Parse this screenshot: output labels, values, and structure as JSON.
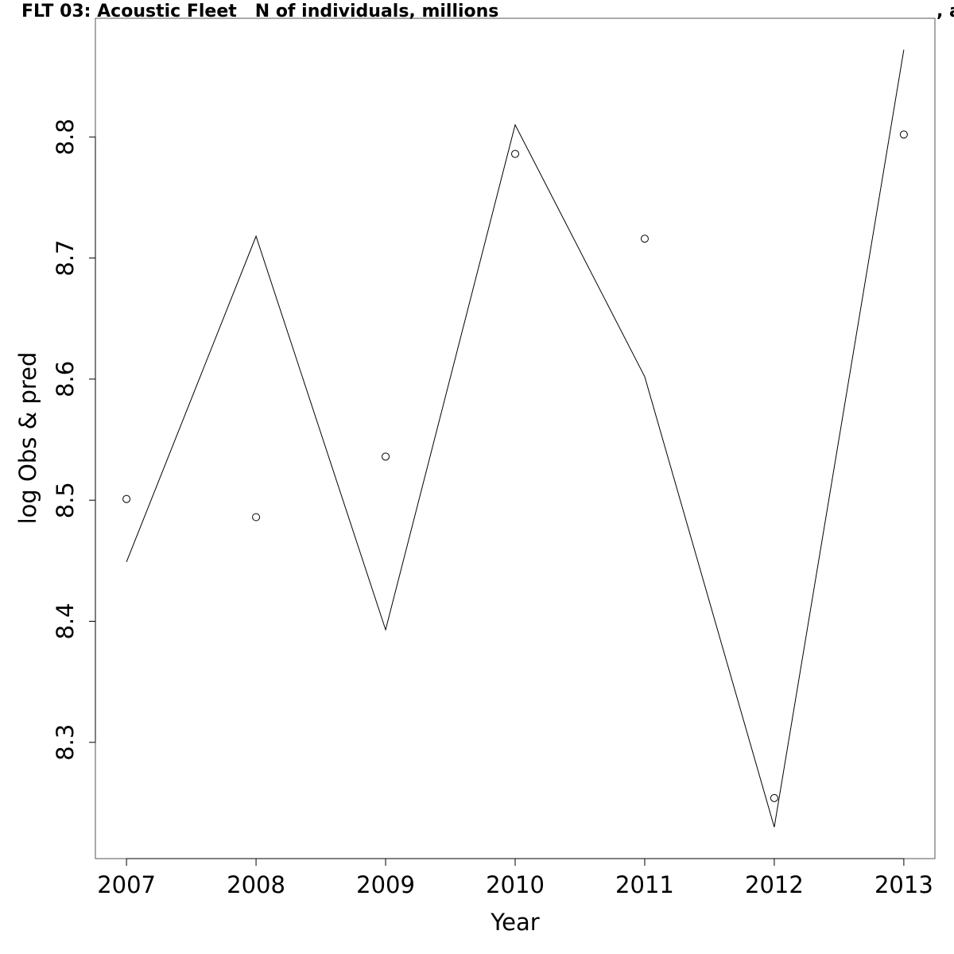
{
  "chart_data": {
    "type": "line",
    "title": "FLT 03: Acoustic Fleet   N of individuals, millions",
    "title_tail": ", a",
    "x_label": "Year",
    "y_label": "log Obs & pred",
    "x": [
      2007,
      2008,
      2009,
      2010,
      2011,
      2012,
      2013
    ],
    "series": [
      {
        "style": "line",
        "color": "#000000",
        "values": [
          8.449,
          8.718,
          8.393,
          8.81,
          8.602,
          8.23,
          8.872
        ]
      },
      {
        "style": "points",
        "color": "#000000",
        "values": [
          8.501,
          8.486,
          8.536,
          8.786,
          8.716,
          8.254,
          8.802
        ]
      }
    ],
    "xlim": [
      2006.76,
      2013.24
    ],
    "ylim": [
      8.204,
      8.898
    ],
    "xticks": [
      2007,
      2008,
      2009,
      2010,
      2011,
      2012,
      2013
    ],
    "yticks": [
      8.3,
      8.4,
      8.5,
      8.6,
      8.7,
      8.8
    ]
  }
}
